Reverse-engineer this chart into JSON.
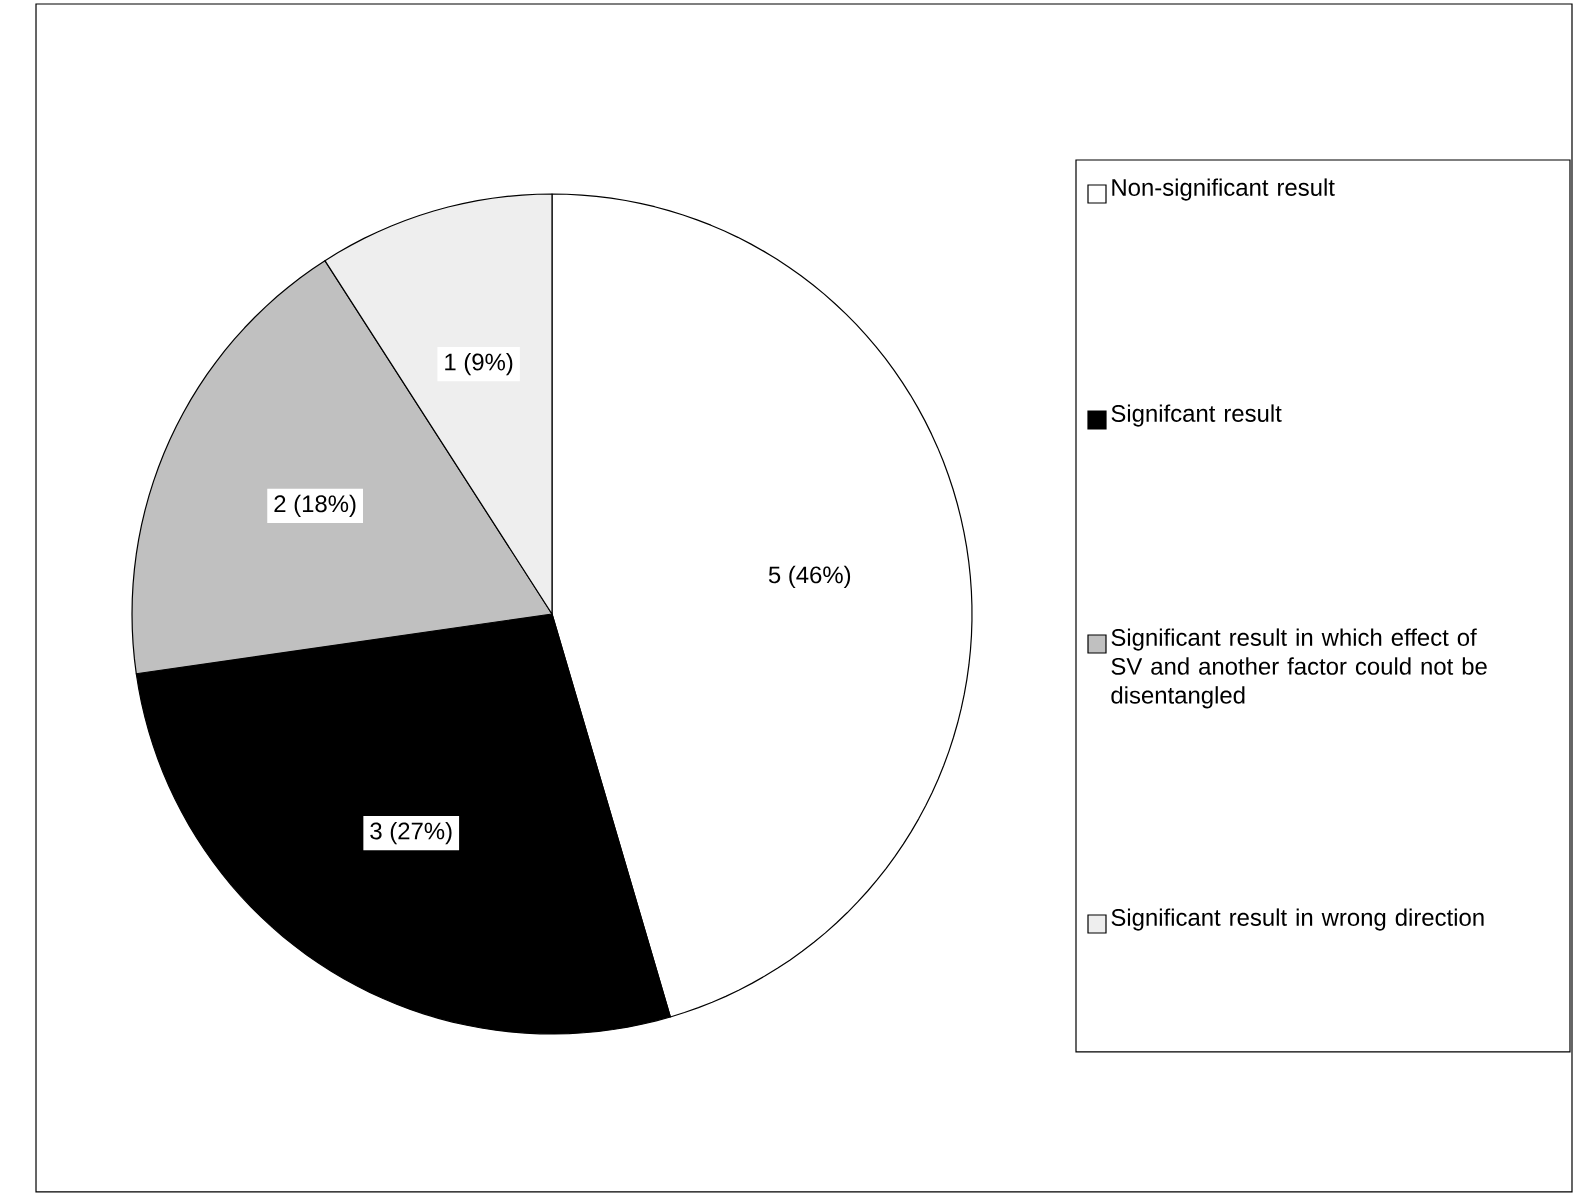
{
  "chart_data": {
    "type": "pie",
    "categories": [
      "Non-significant result",
      "Signifcant result",
      "Significant result in which effect of SV and another factor could not be disentangled",
      "Significant result in wrong direction"
    ],
    "values": [
      5,
      3,
      2,
      1
    ],
    "colors": [
      "#ffffff",
      "#000000",
      "#c0c0c0",
      "#eeeeee"
    ],
    "value_labels": [
      "5 (46%)",
      "3 (27%)",
      "2 (18%)",
      "1 (9%)"
    ],
    "legend": "right"
  }
}
